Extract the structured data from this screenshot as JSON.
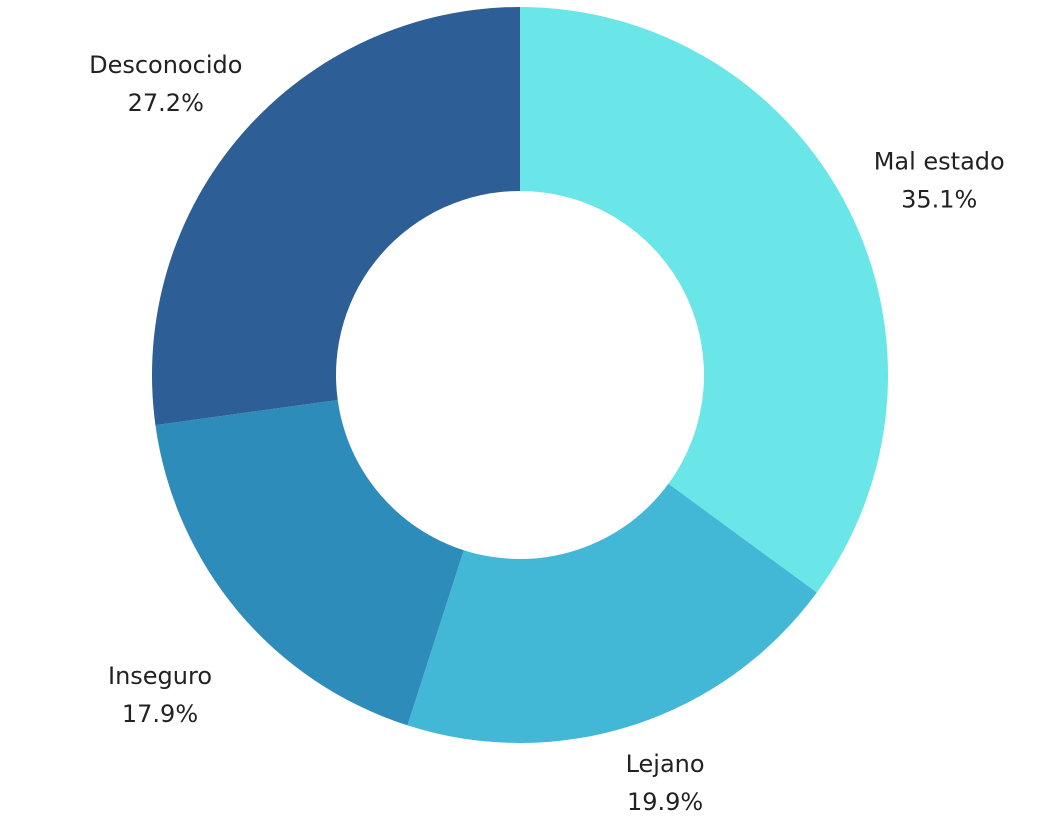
{
  "chart_data": {
    "type": "donut",
    "categories": [
      "Mal estado",
      "Lejano",
      "Inseguro",
      "Desconocido"
    ],
    "values": [
      35.1,
      19.9,
      17.9,
      27.2
    ],
    "value_labels": [
      "35.1%",
      "19.9%",
      "17.9%",
      "27.2%"
    ],
    "colors": [
      "#6ae5e8",
      "#43b8d6",
      "#2e8cba",
      "#2e5e96"
    ]
  }
}
